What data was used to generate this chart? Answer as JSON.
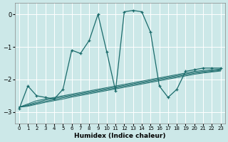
{
  "xlabel": "Humidex (Indice chaleur)",
  "bg_color": "#cce8e8",
  "line_color": "#1a6b6b",
  "grid_color": "#ffffff",
  "xlim": [
    -0.5,
    23.5
  ],
  "ylim": [
    -3.35,
    0.35
  ],
  "yticks": [
    0,
    -1,
    -2,
    -3
  ],
  "xticks": [
    0,
    1,
    2,
    3,
    4,
    5,
    6,
    7,
    8,
    9,
    10,
    11,
    12,
    13,
    14,
    15,
    16,
    17,
    18,
    19,
    20,
    21,
    22,
    23
  ],
  "main_curve_x": [
    0,
    1,
    2,
    3,
    4,
    5,
    6,
    7,
    8,
    9,
    10,
    11,
    12,
    13,
    14,
    15,
    16,
    17,
    18,
    19,
    20,
    21,
    22,
    23
  ],
  "main_curve_y": [
    -2.9,
    -2.2,
    -2.5,
    -2.55,
    -2.6,
    -2.3,
    -1.1,
    -1.2,
    -0.8,
    0.0,
    -1.15,
    -2.35,
    0.08,
    0.12,
    0.08,
    -0.55,
    -2.2,
    -2.55,
    -2.3,
    -1.75,
    -1.7,
    -1.65,
    -1.65,
    -1.65
  ],
  "flat_lines": [
    {
      "x": [
        0,
        1,
        2,
        3,
        4,
        5,
        6,
        7,
        8,
        9,
        10,
        11,
        12,
        13,
        14,
        15,
        16,
        17,
        18,
        19,
        20,
        21,
        22,
        23
      ],
      "y": [
        -2.85,
        -2.75,
        -2.65,
        -2.6,
        -2.55,
        -2.5,
        -2.45,
        -2.4,
        -2.35,
        -2.3,
        -2.25,
        -2.2,
        -2.15,
        -2.1,
        -2.05,
        -2.0,
        -1.95,
        -1.9,
        -1.85,
        -1.8,
        -1.75,
        -1.72,
        -1.7,
        -1.68
      ]
    },
    {
      "x": [
        0,
        1,
        2,
        3,
        4,
        5,
        6,
        7,
        8,
        9,
        10,
        11,
        12,
        13,
        14,
        15,
        16,
        17,
        18,
        19,
        20,
        21,
        22,
        23
      ],
      "y": [
        -2.85,
        -2.78,
        -2.7,
        -2.63,
        -2.58,
        -2.53,
        -2.48,
        -2.43,
        -2.38,
        -2.33,
        -2.28,
        -2.23,
        -2.18,
        -2.13,
        -2.08,
        -2.03,
        -1.98,
        -1.93,
        -1.88,
        -1.83,
        -1.78,
        -1.75,
        -1.73,
        -1.7
      ]
    },
    {
      "x": [
        0,
        1,
        2,
        3,
        4,
        5,
        6,
        7,
        8,
        9,
        10,
        11,
        12,
        13,
        14,
        15,
        16,
        17,
        18,
        19,
        20,
        21,
        22,
        23
      ],
      "y": [
        -2.85,
        -2.8,
        -2.73,
        -2.67,
        -2.62,
        -2.56,
        -2.51,
        -2.46,
        -2.41,
        -2.36,
        -2.31,
        -2.26,
        -2.21,
        -2.16,
        -2.11,
        -2.06,
        -2.01,
        -1.96,
        -1.91,
        -1.86,
        -1.81,
        -1.78,
        -1.75,
        -1.72
      ]
    },
    {
      "x": [
        0,
        1,
        2,
        3,
        4,
        5,
        6,
        7,
        8,
        9,
        10,
        11,
        12,
        13,
        14,
        15,
        16,
        17,
        18,
        19,
        20,
        21,
        22,
        23
      ],
      "y": [
        -2.85,
        -2.82,
        -2.76,
        -2.7,
        -2.65,
        -2.6,
        -2.54,
        -2.49,
        -2.44,
        -2.39,
        -2.34,
        -2.29,
        -2.24,
        -2.19,
        -2.14,
        -2.09,
        -2.04,
        -1.99,
        -1.94,
        -1.89,
        -1.84,
        -1.8,
        -1.77,
        -1.74
      ]
    }
  ]
}
